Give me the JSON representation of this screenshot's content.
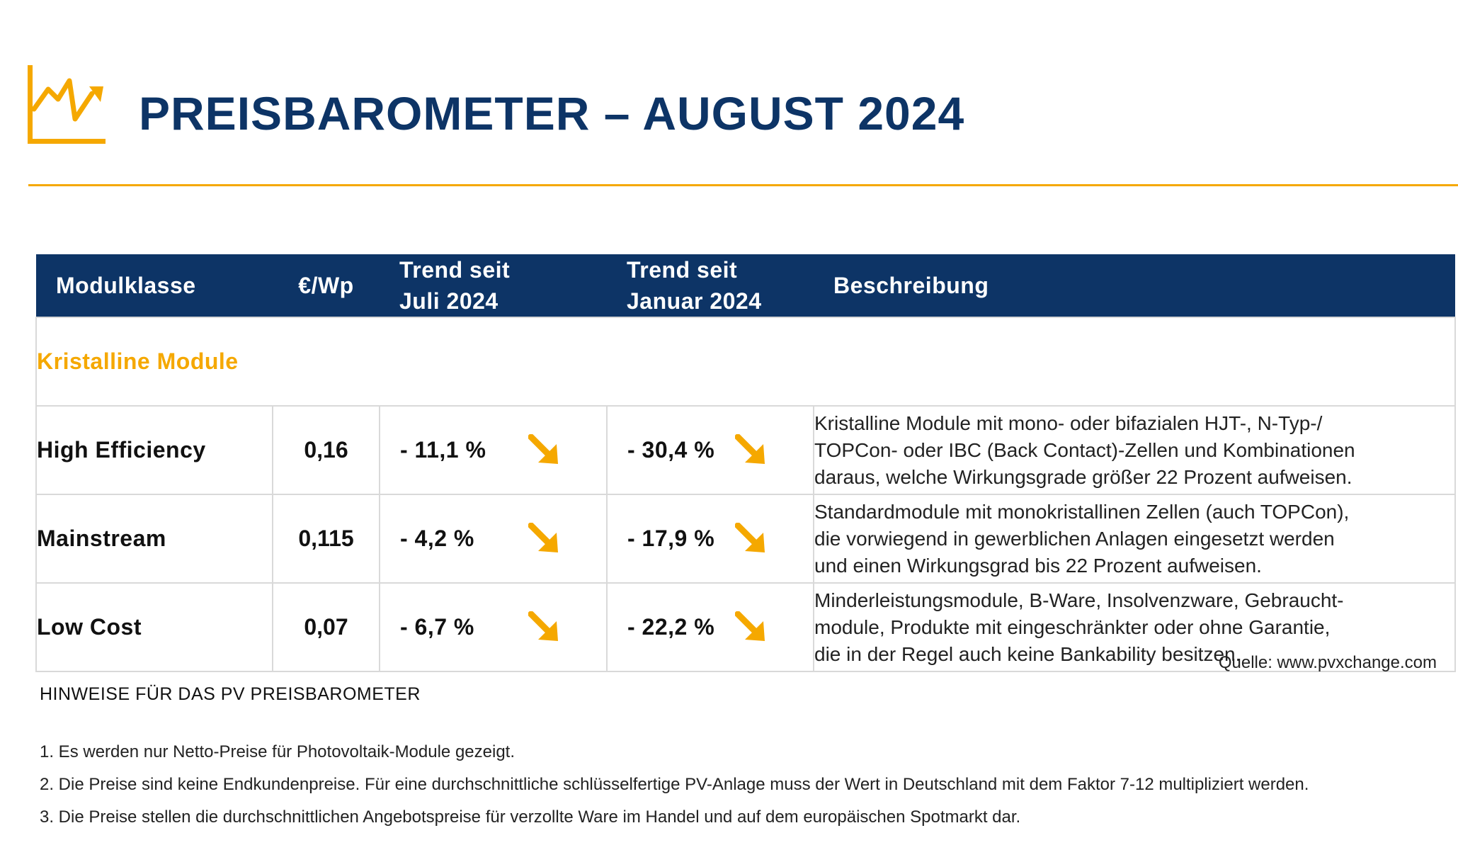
{
  "header": {
    "title": "PREISBAROMETER – AUGUST 2024",
    "logo_icon": "chart-trend-up-icon",
    "accent_color": "#f5a800",
    "brand_color": "#0d3466"
  },
  "table": {
    "columns": {
      "class": "Modulklasse",
      "price": "€/Wp",
      "trend_july": [
        "Trend seit",
        "Juli 2024"
      ],
      "trend_january": [
        "Trend seit",
        "Januar 2024"
      ],
      "description": "Beschreibung"
    },
    "section_label": "Kristalline Module",
    "rows": [
      {
        "class": "High Efficiency",
        "price": "0,16",
        "trend_july": "- 11,1 %",
        "trend_january": "- 30,4 %",
        "trend_icon": "arrow-down-right-icon",
        "description": [
          "Kristalline Module mit mono- oder bifazialen HJT-, N-Typ-/",
          "TOPCon- oder IBC (Back Contact)-Zellen und Kombinationen",
          "daraus, welche Wirkungsgrade größer 22 Prozent aufweisen."
        ]
      },
      {
        "class": "Mainstream",
        "price": "0,115",
        "trend_july": "- 4,2 %",
        "trend_january": "- 17,9 %",
        "trend_icon": "arrow-down-right-icon",
        "description": [
          "Standardmodule mit monokristallinen Zellen (auch TOPCon),",
          "die vorwiegend in gewerblichen Anlagen eingesetzt werden",
          "und einen Wirkungsgrad bis 22 Prozent aufweisen."
        ]
      },
      {
        "class": "Low Cost",
        "price": "0,07",
        "trend_july": "- 6,7 %",
        "trend_january": "- 22,2 %",
        "trend_icon": "arrow-down-right-icon",
        "description": [
          "Minderleistungsmodule, B-Ware, Insolvenzware, Gebraucht-",
          "module, Produkte mit eingeschränkter oder ohne Garantie,",
          "die in der Regel auch keine Bankability besitzen."
        ]
      }
    ]
  },
  "source": "Quelle: www.pvxchange.com",
  "notes": {
    "title": "HINWEISE FÜR DAS PV PREISBAROMETER",
    "items": [
      "1.  Es werden nur Netto-Preise für Photovoltaik-Module gezeigt.",
      "2. Die Preise sind keine Endkundenpreise. Für eine durchschnittliche schlüsselfertige PV-Anlage muss der Wert in Deutschland mit dem Faktor 7-12 multipliziert werden.",
      "3. Die Preise stellen die durchschnittlichen Angebotspreise für verzollte Ware im Handel und auf dem europäischen Spotmarkt dar."
    ]
  }
}
